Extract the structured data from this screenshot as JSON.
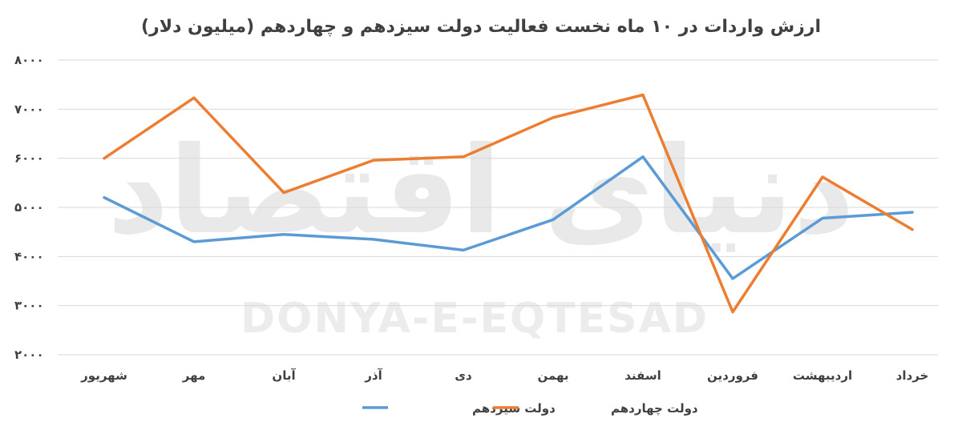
{
  "watermark": {
    "persian": "دنیای اقتصاد",
    "latin": "DONYA-E-EQTESAD"
  },
  "chart_data": {
    "type": "line",
    "title": "ارزش واردات در ۱۰ ماه نخست فعالیت دولت سیزدهم و چهاردهم (میلیون دلار)",
    "categories": [
      "شهریور",
      "مهر",
      "آبان",
      "آذر",
      "دی",
      "بهمن",
      "اسفند",
      "فروردین",
      "اردیبهشت",
      "خرداد"
    ],
    "ylim": [
      2000,
      8000
    ],
    "yticks": [
      2000,
      3000,
      4000,
      5000,
      6000,
      7000,
      8000
    ],
    "ytick_labels": [
      "۲۰۰۰",
      "۳۰۰۰",
      "۴۰۰۰",
      "۵۰۰۰",
      "۶۰۰۰",
      "۷۰۰۰",
      "۸۰۰۰"
    ],
    "grid": true,
    "legend_position": "bottom",
    "series": [
      {
        "name": "دولت سیزدهم",
        "color": "#5b9bd5",
        "values": [
          5200,
          4300,
          4450,
          4350,
          4130,
          4750,
          6030,
          3550,
          4780,
          4900
        ]
      },
      {
        "name": "دولت چهاردهم",
        "color": "#ed7d31",
        "values": [
          6000,
          7230,
          5300,
          5960,
          6030,
          6830,
          7290,
          2870,
          5620,
          4550
        ]
      }
    ]
  }
}
